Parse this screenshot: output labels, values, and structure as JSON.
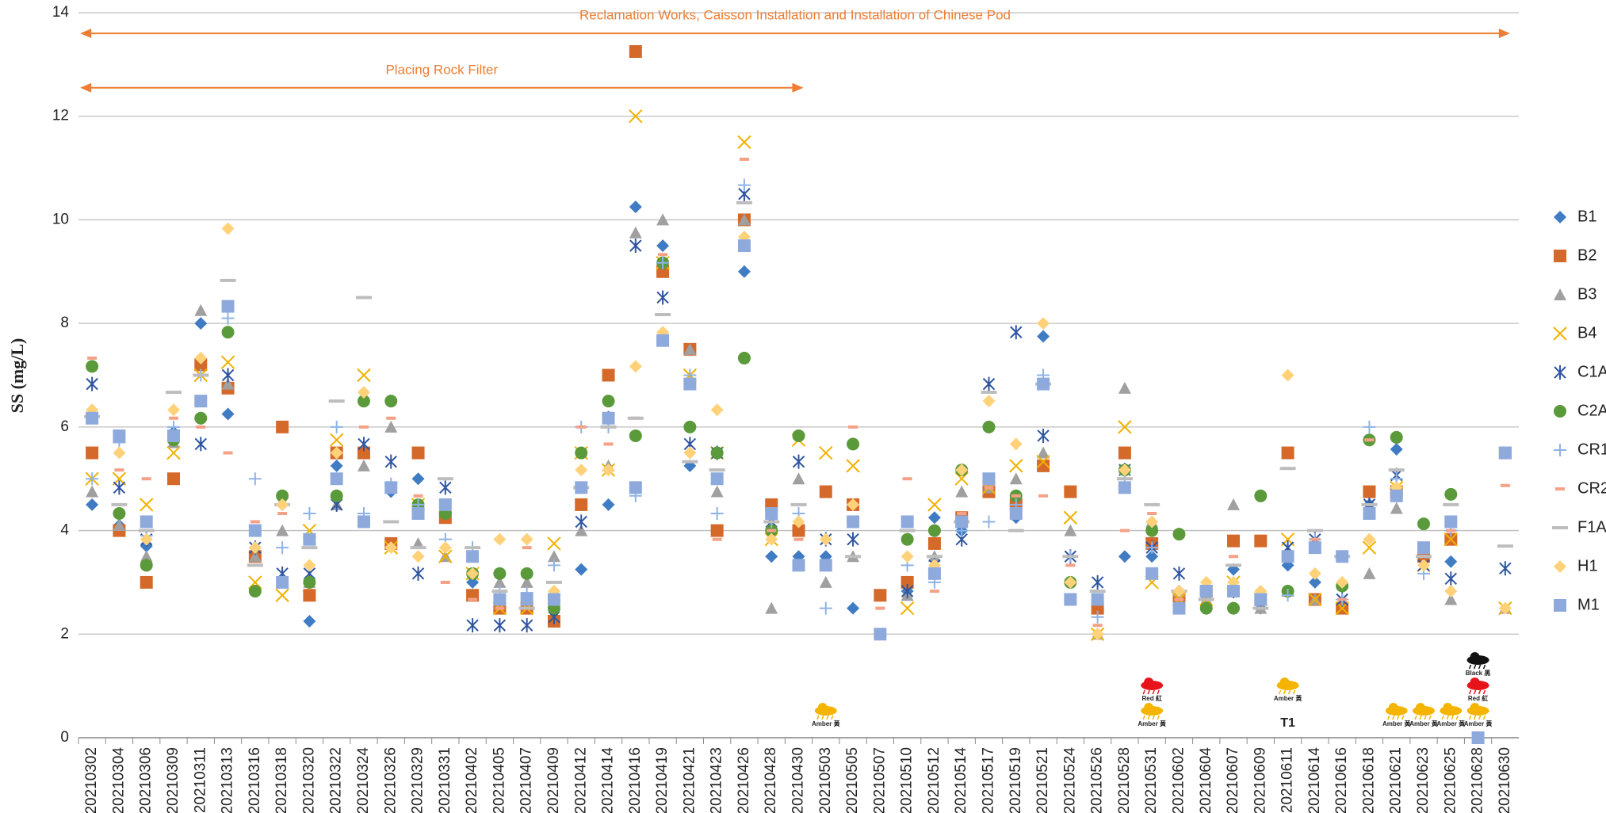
{
  "chart_data": {
    "type": "scatter",
    "y_label": "SS (mg/L)",
    "ylim": [
      0,
      14
    ],
    "yticks": [
      0,
      2,
      4,
      6,
      8,
      10,
      12,
      14
    ],
    "grid": true,
    "legend": "right",
    "categories": [
      "20210302",
      "20210304",
      "20210306",
      "20210309",
      "20210311",
      "20210313",
      "20210316",
      "20210318",
      "20210320",
      "20210322",
      "20210324",
      "20210326",
      "20210329",
      "20210331",
      "20210402",
      "20210405",
      "20210407",
      "20210409",
      "20210412",
      "20210414",
      "20210416",
      "20210419",
      "20210421",
      "20210423",
      "20210426",
      "20210428",
      "20210430",
      "20210503",
      "20210505",
      "20210507",
      "20210510",
      "20210512",
      "20210514",
      "20210517",
      "20210519",
      "20210521",
      "20210524",
      "20210526",
      "20210528",
      "20210531",
      "20210602",
      "20210604",
      "20210607",
      "20210609",
      "20210611",
      "20210614",
      "20210616",
      "20210618",
      "20210621",
      "20210623",
      "20210625",
      "20210628",
      "20210630"
    ],
    "series": [
      {
        "name": "B1",
        "color": "#3f7cc4",
        "marker": "diamond",
        "values": [
          4.5,
          4.1,
          3.7,
          5.9,
          8.0,
          6.25,
          3.67,
          4.5,
          2.25,
          5.25,
          5.5,
          4.75,
          5.0,
          4.5,
          3.0,
          2.5,
          2.5,
          2.33,
          3.25,
          4.5,
          10.25,
          9.5,
          5.25,
          5.5,
          9.0,
          3.5,
          3.5,
          3.5,
          2.5,
          null,
          2.83,
          4.25,
          4.0,
          4.75,
          4.25,
          7.75,
          null,
          2.0,
          3.5,
          3.5,
          2.83,
          2.67,
          3.25,
          2.5,
          3.33,
          3.0,
          2.5,
          4.5,
          5.57,
          3.5,
          3.4,
          null,
          null
        ]
      },
      {
        "name": "B2",
        "color": "#d4692a",
        "marker": "square",
        "values": [
          5.5,
          4.0,
          3.0,
          5.0,
          7.2,
          6.75,
          3.5,
          6.0,
          2.75,
          5.5,
          5.5,
          3.75,
          5.5,
          4.25,
          2.75,
          2.5,
          2.5,
          2.25,
          4.5,
          7.0,
          13.25,
          9.0,
          7.5,
          4.0,
          10.0,
          4.5,
          4.0,
          4.75,
          4.5,
          2.75,
          3.0,
          3.75,
          4.25,
          4.75,
          4.5,
          5.25,
          4.75,
          2.5,
          5.5,
          3.75,
          2.67,
          2.83,
          3.8,
          3.8,
          5.5,
          2.67,
          2.5,
          4.75,
          4.75,
          3.5,
          3.83,
          null,
          5.5
        ]
      },
      {
        "name": "B3",
        "color": "#a0a0a0",
        "marker": "triangle",
        "values": [
          4.75,
          4.1,
          3.5,
          5.7,
          8.25,
          6.83,
          3.5,
          4.0,
          3.0,
          4.5,
          5.25,
          6.0,
          3.75,
          3.5,
          3.17,
          3.0,
          3.0,
          3.5,
          4.0,
          5.25,
          9.75,
          10.0,
          7.5,
          4.75,
          10.0,
          2.5,
          5.0,
          3.0,
          3.5,
          null,
          2.75,
          3.5,
          4.75,
          4.83,
          5.0,
          5.5,
          4.0,
          2.0,
          6.75,
          4.17,
          2.83,
          2.67,
          4.5,
          2.5,
          2.83,
          2.67,
          3.0,
          3.17,
          4.43,
          3.67,
          2.67,
          null,
          2.5
        ]
      },
      {
        "name": "B4",
        "color": "#f2b100",
        "marker": "x",
        "values": [
          5.0,
          5.0,
          4.5,
          5.5,
          7.0,
          7.25,
          3.0,
          2.75,
          4.0,
          5.75,
          7.0,
          3.67,
          4.5,
          3.5,
          3.17,
          2.5,
          2.5,
          3.75,
          5.5,
          5.17,
          12.0,
          9.17,
          7.0,
          5.5,
          11.5,
          3.83,
          5.75,
          5.5,
          5.25,
          null,
          2.5,
          4.5,
          5.0,
          4.83,
          5.25,
          5.33,
          4.25,
          2.0,
          6.0,
          3.0,
          2.67,
          2.67,
          3.0,
          2.67,
          3.83,
          2.67,
          2.5,
          3.67,
          4.83,
          3.33,
          3.83,
          null,
          2.5
        ]
      },
      {
        "name": "C1A",
        "color": "#2f55a0",
        "marker": "asterisk",
        "values": [
          6.83,
          4.83,
          3.83,
          5.83,
          5.67,
          7.0,
          3.67,
          3.17,
          3.17,
          4.5,
          5.67,
          5.33,
          3.17,
          4.83,
          2.17,
          2.17,
          2.17,
          2.33,
          4.17,
          6.17,
          9.5,
          8.5,
          5.67,
          5.5,
          10.5,
          4.17,
          5.33,
          3.83,
          3.83,
          null,
          2.83,
          3.33,
          3.83,
          6.83,
          7.83,
          5.83,
          3.5,
          3.0,
          5.17,
          3.67,
          3.17,
          2.83,
          2.83,
          2.67,
          3.67,
          3.83,
          2.67,
          4.5,
          5.07,
          3.33,
          3.07,
          null,
          3.27
        ]
      },
      {
        "name": "C2A",
        "color": "#5a9a3a",
        "marker": "circle",
        "values": [
          7.17,
          4.33,
          3.33,
          5.75,
          6.17,
          7.83,
          2.83,
          4.67,
          3.0,
          4.67,
          6.5,
          6.5,
          4.5,
          4.33,
          3.17,
          3.17,
          3.17,
          2.5,
          5.5,
          6.5,
          5.83,
          9.17,
          6.0,
          5.5,
          7.33,
          4.0,
          5.83,
          null,
          5.67,
          null,
          3.83,
          4.0,
          5.17,
          6.0,
          4.67,
          null,
          3.0,
          null,
          5.17,
          4.0,
          3.93,
          2.5,
          2.5,
          4.67,
          2.83,
          null,
          2.93,
          5.75,
          5.8,
          4.13,
          4.7,
          null,
          null
        ]
      },
      {
        "name": "CR1",
        "color": "#8fb3e6",
        "marker": "plus",
        "values": [
          5.0,
          5.7,
          3.9,
          6.0,
          7.0,
          8.1,
          5.0,
          3.67,
          4.33,
          6.0,
          4.33,
          4.9,
          4.5,
          3.83,
          3.67,
          2.83,
          2.8,
          3.33,
          6.0,
          6.0,
          4.67,
          9.17,
          7.0,
          4.33,
          10.67,
          4.17,
          4.33,
          2.5,
          4.5,
          null,
          3.33,
          3.0,
          4.0,
          4.17,
          4.5,
          7.0,
          3.5,
          2.33,
          5.0,
          3.67,
          2.83,
          2.83,
          2.83,
          2.67,
          2.75,
          3.83,
          2.67,
          6.0,
          5.0,
          3.17,
          4.0,
          null,
          null
        ]
      },
      {
        "name": "CR2",
        "color": "#f4a186",
        "marker": "dash",
        "values": [
          7.33,
          5.17,
          5.0,
          6.17,
          6.0,
          5.5,
          4.17,
          4.33,
          3.83,
          5.5,
          6.0,
          6.17,
          4.67,
          3.0,
          2.67,
          2.5,
          3.67,
          2.83,
          6.0,
          5.67,
          6.17,
          9.33,
          5.5,
          3.83,
          11.17,
          4.0,
          3.83,
          3.83,
          6.0,
          2.5,
          5.0,
          2.83,
          4.33,
          4.83,
          4.67,
          4.67,
          3.33,
          2.17,
          4.0,
          4.33,
          2.67,
          2.67,
          3.5,
          2.83,
          3.5,
          3.83,
          2.67,
          5.75,
          4.83,
          3.5,
          4.0,
          null,
          4.87
        ]
      },
      {
        "name": "F1A",
        "color": "#bdbdbd",
        "marker": "bar",
        "values": [
          6.2,
          4.5,
          4.0,
          6.67,
          7.0,
          8.83,
          3.33,
          4.5,
          3.67,
          6.5,
          8.5,
          4.17,
          3.67,
          5.0,
          3.67,
          2.83,
          2.5,
          3.0,
          4.83,
          6.0,
          6.17,
          8.17,
          5.33,
          5.17,
          10.33,
          4.17,
          4.5,
          null,
          3.5,
          null,
          4.0,
          3.5,
          4.17,
          6.67,
          4.0,
          6.83,
          3.5,
          2.83,
          5.0,
          4.5,
          2.83,
          2.67,
          3.33,
          2.5,
          5.2,
          4.0,
          3.5,
          4.5,
          5.17,
          3.5,
          4.5,
          null,
          3.7
        ]
      },
      {
        "name": "H1",
        "color": "#ffd27a",
        "marker": "diamond",
        "values": [
          6.33,
          5.5,
          3.83,
          6.33,
          7.33,
          9.83,
          3.67,
          4.5,
          3.33,
          5.5,
          6.67,
          3.67,
          3.5,
          3.67,
          3.17,
          3.83,
          3.83,
          2.83,
          5.17,
          5.17,
          7.17,
          7.83,
          5.5,
          6.33,
          9.67,
          3.83,
          4.17,
          3.83,
          4.5,
          null,
          3.5,
          3.33,
          5.17,
          6.5,
          5.67,
          8.0,
          3.0,
          2.0,
          5.17,
          4.17,
          2.83,
          3.0,
          3.0,
          2.83,
          7.0,
          3.17,
          3.0,
          3.83,
          4.83,
          3.33,
          2.83,
          null,
          2.5
        ]
      },
      {
        "name": "M1",
        "color": "#8eaadc",
        "marker": "square",
        "values": [
          6.17,
          5.83,
          4.17,
          5.83,
          6.5,
          8.33,
          4.0,
          3.0,
          3.83,
          5.0,
          4.17,
          4.83,
          4.33,
          4.5,
          3.5,
          2.67,
          2.67,
          2.67,
          4.83,
          6.17,
          4.83,
          7.67,
          6.83,
          5.0,
          9.5,
          4.33,
          3.33,
          3.33,
          4.17,
          2.0,
          4.17,
          3.17,
          4.17,
          5.0,
          4.33,
          6.83,
          2.67,
          2.67,
          4.83,
          3.17,
          2.5,
          2.83,
          2.83,
          2.67,
          3.5,
          3.67,
          3.5,
          4.33,
          4.67,
          3.67,
          4.17,
          0,
          5.5
        ]
      }
    ],
    "annotations": [
      {
        "text": "Reclamation Works, Caisson Installation and Installation of Chinese Pod",
        "start": "20210302",
        "end": "20210630",
        "y": 13.6
      },
      {
        "text": "Placing Rock Filter",
        "start": "20210302",
        "end": "20210430",
        "y": 12.55
      }
    ],
    "weather_signals": [
      {
        "category": "20210503",
        "labels": [
          "Amber 黃"
        ]
      },
      {
        "category": "20210531",
        "labels": [
          "Amber 黃",
          "Red 紅"
        ]
      },
      {
        "category": "20210611",
        "labels": [
          "T1",
          "Amber 黃"
        ]
      },
      {
        "category": "20210621",
        "labels": [
          "Amber 黃"
        ]
      },
      {
        "category": "20210623",
        "labels": [
          "Amber 黃"
        ]
      },
      {
        "category": "20210625",
        "labels": [
          "Amber 黃"
        ]
      },
      {
        "category": "20210628",
        "labels": [
          "Amber 黃",
          "Red 紅",
          "Black 黑"
        ]
      }
    ]
  }
}
